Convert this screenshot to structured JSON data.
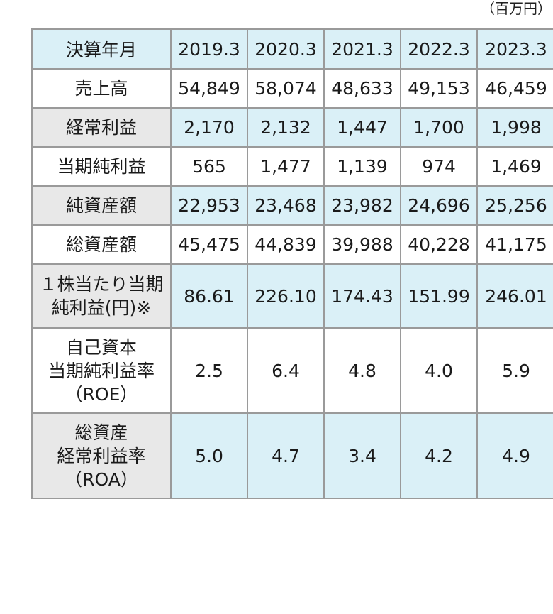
{
  "unit_label": "（百万円）",
  "header": {
    "label": "決算年月",
    "years": [
      "2019.3",
      "2020.3",
      "2021.3",
      "2022.3",
      "2023.3"
    ]
  },
  "rows": [
    {
      "label_lines": [
        "売上高"
      ],
      "values": [
        "54,849",
        "58,074",
        "48,633",
        "49,153",
        "46,459"
      ]
    },
    {
      "label_lines": [
        "経常利益"
      ],
      "values": [
        "2,170",
        "2,132",
        "1,447",
        "1,700",
        "1,998"
      ]
    },
    {
      "label_lines": [
        "当期純利益"
      ],
      "values": [
        "565",
        "1,477",
        "1,139",
        "974",
        "1,469"
      ]
    },
    {
      "label_lines": [
        "純資産額"
      ],
      "values": [
        "22,953",
        "23,468",
        "23,982",
        "24,696",
        "25,256"
      ]
    },
    {
      "label_lines": [
        "総資産額"
      ],
      "values": [
        "45,475",
        "44,839",
        "39,988",
        "40,228",
        "41,175"
      ]
    },
    {
      "label_lines": [
        "１株当たり当期",
        "純利益(円)※"
      ],
      "values": [
        "86.61",
        "226.10",
        "174.43",
        "151.99",
        "246.01"
      ]
    },
    {
      "label_lines": [
        "自己資本",
        "当期純利益率",
        "（ROE）"
      ],
      "values": [
        "2.5",
        "6.4",
        "4.8",
        "4.0",
        "5.9"
      ]
    },
    {
      "label_lines": [
        "総資産",
        "経常利益率",
        "（ROA）"
      ],
      "values": [
        "5.0",
        "4.7",
        "3.4",
        "4.2",
        "4.9"
      ]
    }
  ]
}
